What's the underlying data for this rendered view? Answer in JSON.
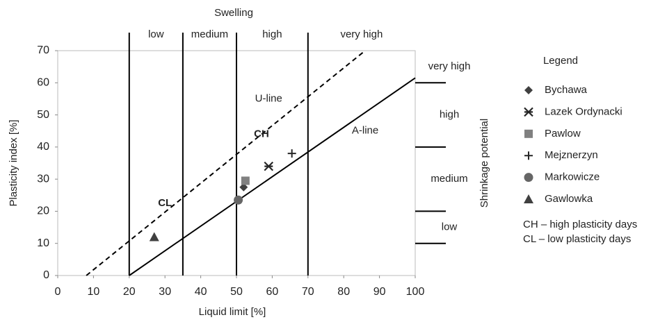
{
  "chart_data": {
    "type": "scatter",
    "x_label": "Liquid limit [%]",
    "y_label": "Plasticity index [%]",
    "xlim": [
      0,
      100
    ],
    "ylim": [
      0,
      70
    ],
    "xticks": [
      0,
      10,
      20,
      30,
      40,
      50,
      60,
      70,
      80,
      90,
      100
    ],
    "yticks": [
      0,
      10,
      20,
      30,
      40,
      50,
      60,
      70
    ],
    "series": [
      {
        "name": "Bychawa",
        "color": "#404040",
        "marker": "diamond",
        "x": [
          52
        ],
        "values": [
          27.5
        ]
      },
      {
        "name": "Lazek Ordynacki",
        "color": "#262626",
        "marker": "asterisk",
        "x": [
          59
        ],
        "values": [
          34
        ]
      },
      {
        "name": "Pawlow",
        "color": "#808080",
        "marker": "square",
        "x": [
          52.5
        ],
        "values": [
          29.5
        ]
      },
      {
        "name": "Mejznerzyn",
        "color": "#262626",
        "marker": "plus",
        "x": [
          65.5
        ],
        "values": [
          38
        ]
      },
      {
        "name": "Markowicze",
        "color": "#666666",
        "marker": "circle",
        "x": [
          50.5
        ],
        "values": [
          23.5
        ]
      },
      {
        "name": "Gawlowka",
        "color": "#404040",
        "marker": "triangle",
        "x": [
          27
        ],
        "values": [
          12
        ]
      }
    ],
    "reference_lines": [
      {
        "name": "A-line",
        "style": "solid",
        "x": [
          20,
          100
        ],
        "values": [
          0,
          61.5
        ]
      },
      {
        "name": "U-line",
        "style": "dashed",
        "x": [
          8,
          86
        ],
        "values": [
          0,
          70
        ]
      }
    ],
    "zones": [
      "CH",
      "CL"
    ],
    "swelling": {
      "title": "Swelling",
      "boundaries": [
        20,
        35,
        50,
        70
      ],
      "classes": [
        "low",
        "medium",
        "high",
        "very high"
      ]
    },
    "shrinkage": {
      "title": "Shrinkage potential",
      "boundaries": [
        10,
        20,
        40,
        60
      ],
      "classes": [
        "low",
        "medium",
        "high",
        "very high"
      ]
    },
    "legend_title": "Legend",
    "notes": [
      "CH – high plasticity days",
      "CL – low plasticity days"
    ]
  }
}
